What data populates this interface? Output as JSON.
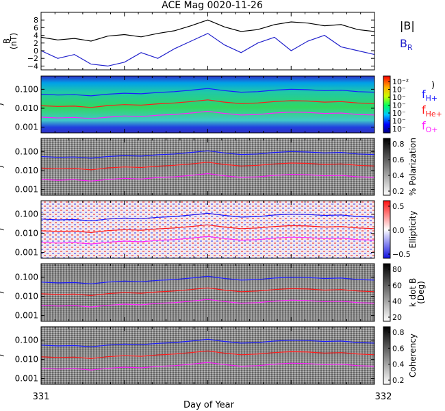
{
  "chart_data": {
    "type": "line",
    "title": "ACE Mag 0020-11-26",
    "xlabel": "Day of Year",
    "x_ticks": [
      "331",
      "332"
    ],
    "xlim": [
      331,
      332
    ],
    "panels": [
      {
        "kind": "line",
        "ylabel": "B (nT)",
        "ylabel_lines": [
          "B",
          "(nT)"
        ],
        "yticks": [
          "8",
          "6",
          "4",
          "2",
          "0",
          "−2",
          "−4"
        ],
        "ylim": [
          -5,
          10
        ],
        "legend": [
          {
            "label": "|B|",
            "color": "#000000"
          },
          {
            "label": "B",
            "sub": "R",
            "color": "#2222cc"
          }
        ],
        "series": [
          {
            "name": "|B|",
            "color": "#000000",
            "x": [
              331.0,
              331.05,
              331.1,
              331.15,
              331.2,
              331.25,
              331.3,
              331.35,
              331.4,
              331.45,
              331.5,
              331.55,
              331.6,
              331.65,
              331.7,
              331.75,
              331.8,
              331.85,
              331.9,
              331.95,
              332.0
            ],
            "values": [
              3.5,
              2.8,
              3.2,
              2.5,
              3.8,
              4.2,
              3.6,
              4.5,
              5.2,
              6.5,
              8.0,
              6.2,
              5.0,
              5.5,
              6.8,
              7.5,
              7.2,
              6.5,
              6.8,
              5.5,
              5.0
            ]
          },
          {
            "name": "B_R",
            "color": "#2222cc",
            "x": [
              331.0,
              331.05,
              331.1,
              331.15,
              331.2,
              331.25,
              331.3,
              331.35,
              331.4,
              331.45,
              331.5,
              331.55,
              331.6,
              331.65,
              331.7,
              331.75,
              331.8,
              331.85,
              331.9,
              331.95,
              332.0
            ],
            "values": [
              0.0,
              -2.0,
              -1.0,
              -3.5,
              -4.0,
              -3.0,
              -0.5,
              -2.0,
              0.5,
              2.5,
              4.5,
              1.5,
              -0.5,
              2.0,
              3.5,
              0.0,
              2.5,
              4.0,
              1.0,
              0.0,
              -1.0
            ]
          }
        ]
      },
      {
        "kind": "spectrogram",
        "ylabel": "Freq (Hz)",
        "yticks": [
          "0.100",
          "0.010",
          "0.001"
        ],
        "ylim": [
          0.0005,
          0.5
        ],
        "colorbar_label": "",
        "colorbar_ticks": [
          "10⁻²",
          "10⁻",
          "10⁻",
          "10⁻",
          "10⁻",
          "10⁻",
          "10⁻"
        ],
        "colormap": "rainbow",
        "colorbar_close": ")"
      },
      {
        "kind": "spectrogram",
        "ylabel": "Freq (Hz)",
        "yticks": [
          "0.100",
          "0.010",
          "0.001"
        ],
        "ylim": [
          0.0005,
          0.5
        ],
        "colorbar_label": "% Polarization",
        "colorbar_ticks": [
          "0.8",
          "0.6",
          "0.4",
          "0.2"
        ],
        "colormap": "gray"
      },
      {
        "kind": "spectrogram",
        "ylabel": "Freq (Hz)",
        "yticks": [
          "0.100",
          "0.010",
          "0.001"
        ],
        "ylim": [
          0.0005,
          0.5
        ],
        "colorbar_label": "Ellipticity",
        "colorbar_ticks": [
          "0.5",
          "0.0",
          "−0.5"
        ],
        "colormap": "bwr"
      },
      {
        "kind": "spectrogram",
        "ylabel": "Freq (Hz)",
        "yticks": [
          "0.100",
          "0.010",
          "0.001"
        ],
        "ylim": [
          0.0005,
          0.5
        ],
        "colorbar_label": "k dot B (Deg)",
        "colorbar_label_lines": [
          "k dot B",
          "(Deg)"
        ],
        "colorbar_ticks": [
          "80",
          "60",
          "40",
          "20"
        ],
        "colormap": "gray"
      },
      {
        "kind": "spectrogram",
        "ylabel": "Freq (Hz)",
        "yticks": [
          "0.100",
          "0.010",
          "0.001"
        ],
        "ylim": [
          0.0005,
          0.5
        ],
        "colorbar_label": "Coherency",
        "colorbar_ticks": [
          "0.8",
          "0.6",
          "0.4",
          "0.2"
        ],
        "colormap": "gray"
      }
    ],
    "gyrofrequency_lines": [
      {
        "name": "f_H+",
        "label": "f",
        "sub": "H+",
        "color": "#1a1aff",
        "x": [
          331.0,
          331.05,
          331.1,
          331.15,
          331.2,
          331.25,
          331.3,
          331.35,
          331.4,
          331.45,
          331.5,
          331.55,
          331.6,
          331.65,
          331.7,
          331.75,
          331.8,
          331.85,
          331.9,
          331.95,
          332.0
        ],
        "values": [
          0.055,
          0.05,
          0.052,
          0.045,
          0.055,
          0.062,
          0.058,
          0.068,
          0.075,
          0.09,
          0.11,
          0.085,
          0.07,
          0.075,
          0.09,
          0.1,
          0.095,
          0.085,
          0.09,
          0.075,
          0.07
        ]
      },
      {
        "name": "f_He+",
        "label": "f",
        "sub": "He+",
        "color": "#ff1a1a",
        "x": [
          331.0,
          331.05,
          331.1,
          331.15,
          331.2,
          331.25,
          331.3,
          331.35,
          331.4,
          331.45,
          331.5,
          331.55,
          331.6,
          331.65,
          331.7,
          331.75,
          331.8,
          331.85,
          331.9,
          331.95,
          332.0
        ],
        "values": [
          0.0135,
          0.0125,
          0.013,
          0.011,
          0.0138,
          0.0155,
          0.0145,
          0.017,
          0.019,
          0.0225,
          0.0275,
          0.021,
          0.0175,
          0.019,
          0.0225,
          0.025,
          0.024,
          0.021,
          0.0225,
          0.019,
          0.0175
        ]
      },
      {
        "name": "f_O+",
        "label": "f",
        "sub": "O+",
        "color": "#ff22ff",
        "x": [
          331.0,
          331.05,
          331.1,
          331.15,
          331.2,
          331.25,
          331.3,
          331.35,
          331.4,
          331.45,
          331.5,
          331.55,
          331.6,
          331.65,
          331.7,
          331.75,
          331.8,
          331.85,
          331.9,
          331.95,
          332.0
        ],
        "values": [
          0.0034,
          0.0031,
          0.0033,
          0.0028,
          0.0034,
          0.0039,
          0.0036,
          0.0043,
          0.0047,
          0.0056,
          0.0069,
          0.0053,
          0.0044,
          0.0047,
          0.0056,
          0.0063,
          0.006,
          0.0053,
          0.0056,
          0.0047,
          0.0044
        ]
      }
    ]
  }
}
